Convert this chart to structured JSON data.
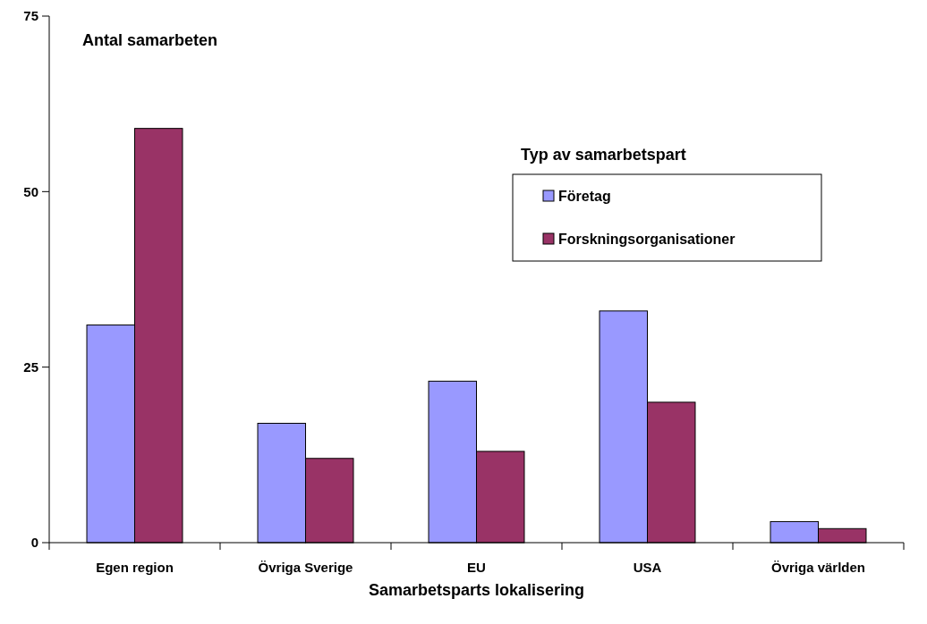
{
  "chart_data": {
    "type": "bar",
    "ylabel": "Antal samarbeten",
    "xlabel": "Samarbetsparts lokalisering",
    "legend_title": "Typ av samarbetspart",
    "legend": "top right",
    "categories": [
      "Egen region",
      "Övriga Sverige",
      "EU",
      "USA",
      "Övriga världen"
    ],
    "series": [
      {
        "name": "Företag",
        "color": "#9999ff",
        "values": [
          31,
          17,
          23,
          33,
          3
        ]
      },
      {
        "name": "Forskningsorganisationer",
        "color": "#993366",
        "values": [
          59,
          12,
          13,
          20,
          2
        ]
      }
    ],
    "ylim": [
      0,
      75
    ],
    "yticks": [
      0,
      25,
      50,
      75
    ],
    "grid": false
  }
}
